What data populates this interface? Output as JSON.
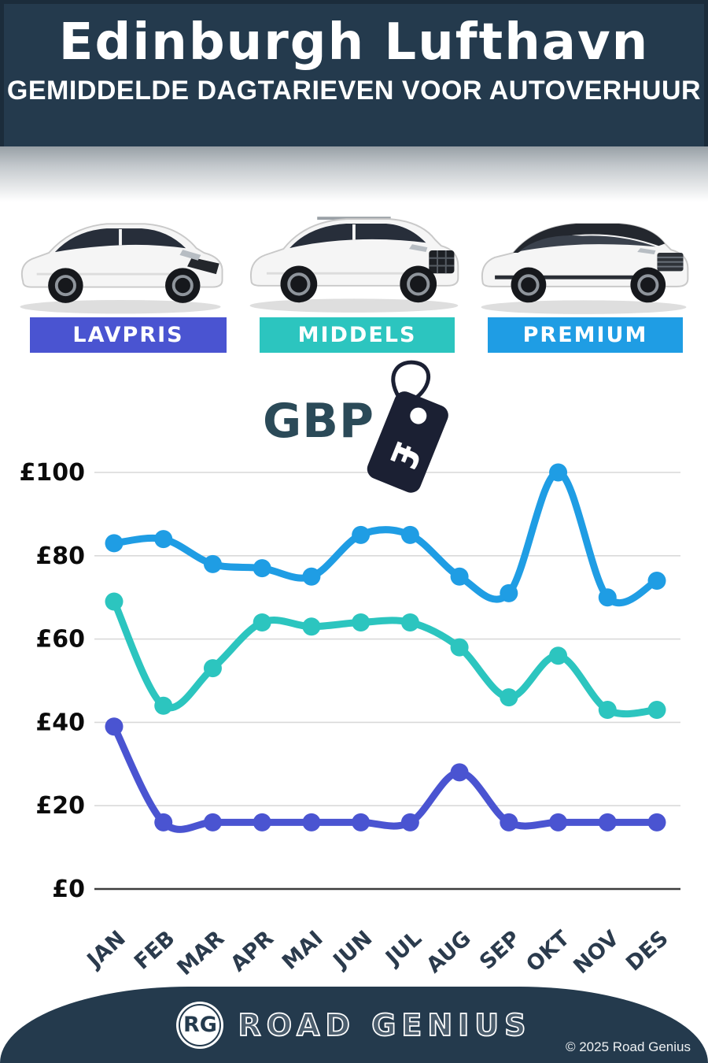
{
  "header": {
    "title": "Edinburgh Lufthavn",
    "subtitle": "GEMIDDELDE DAGTARIEVEN VOOR AUTOVERHUUR"
  },
  "tiers": [
    {
      "label": "LAVPRIS",
      "color": "#4a54d1"
    },
    {
      "label": "MIDDELS",
      "color": "#2cc5bf"
    },
    {
      "label": "PREMIUM",
      "color": "#1f9de4"
    }
  ],
  "currency": {
    "label": "GBP",
    "tag_symbol": "£"
  },
  "chart_data": {
    "type": "line",
    "title": "GBP",
    "categories": [
      "JAN",
      "FEB",
      "MAR",
      "APR",
      "MAI",
      "JUN",
      "JUL",
      "AUG",
      "SEP",
      "OKT",
      "NOV",
      "DES"
    ],
    "series": [
      {
        "name": "PREMIUM",
        "color": "#1f9de4",
        "values": [
          83,
          84,
          78,
          77,
          75,
          85,
          85,
          75,
          71,
          100,
          70,
          74
        ]
      },
      {
        "name": "MIDDELS",
        "color": "#2cc5bf",
        "values": [
          69,
          44,
          53,
          64,
          63,
          64,
          64,
          58,
          46,
          56,
          43,
          43
        ]
      },
      {
        "name": "LAVPRIS",
        "color": "#4a54d1",
        "values": [
          39,
          16,
          16,
          16,
          16,
          16,
          16,
          28,
          16,
          16,
          16,
          16
        ]
      }
    ],
    "xlabel": "",
    "ylabel": "",
    "ylim": [
      0,
      100
    ],
    "yticks": [
      0,
      20,
      40,
      60,
      80,
      100
    ],
    "ytick_labels": [
      "£0",
      "£20",
      "£40",
      "£60",
      "£80",
      "£100"
    ],
    "grid": true,
    "legend_position": "none"
  },
  "footer": {
    "logo_initials": "RG",
    "brand": "ROAD GENIUS",
    "copyright": "© 2025 Road Genius"
  },
  "colors": {
    "header_bg": "#243a4d",
    "footer_bg": "#243a4d",
    "gridline": "#d9d9d9",
    "axis_line": "#3c3c3c",
    "tick_text": "#0b0b0b",
    "month_text": "#2b3b4d",
    "gbp_text": "#2b4a58",
    "tag_fill": "#1b2033"
  }
}
